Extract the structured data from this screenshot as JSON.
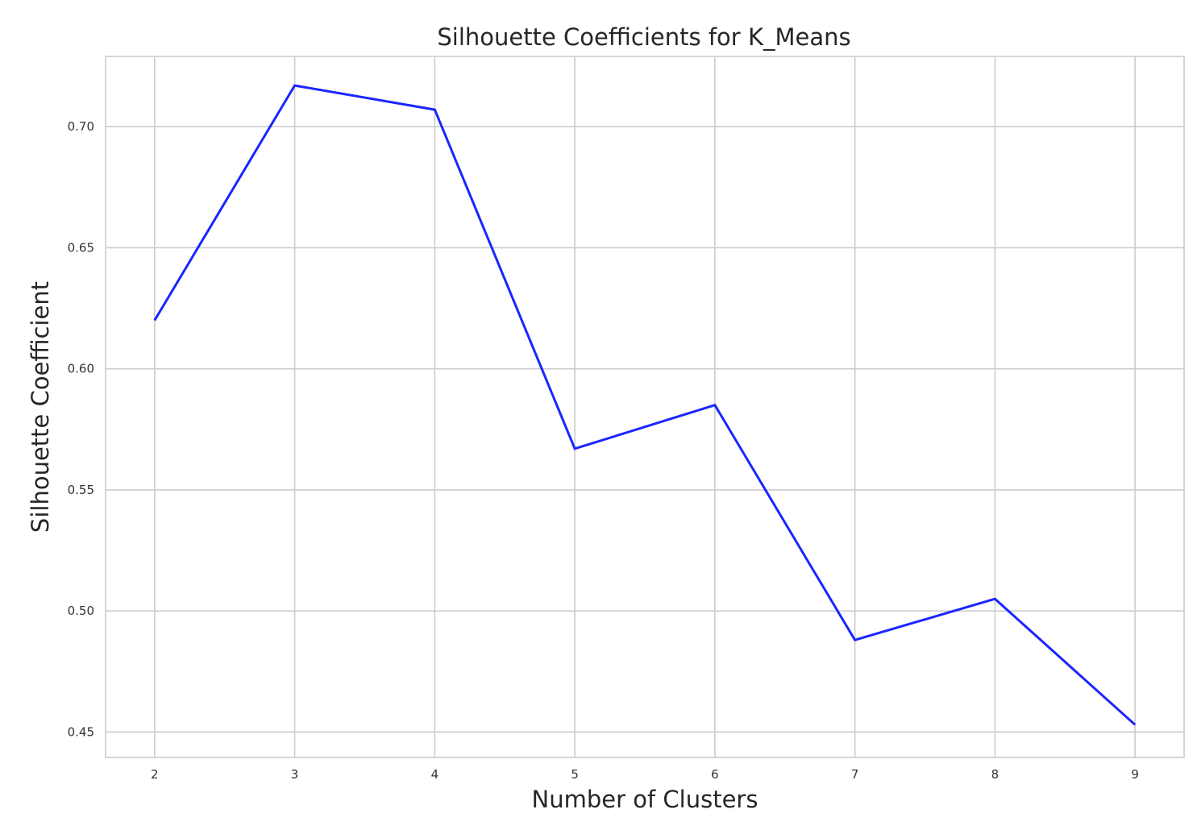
{
  "chart_data": {
    "type": "line",
    "title": "Silhouette Coefficients for K_Means",
    "xlabel": "Number of Clusters",
    "ylabel": "Silhouette Coefficient",
    "x": [
      2,
      3,
      4,
      5,
      6,
      7,
      8,
      9
    ],
    "xticks": [
      "2",
      "3",
      "4",
      "5",
      "6",
      "7",
      "8",
      "9"
    ],
    "yticks": [
      "0.45",
      "0.50",
      "0.55",
      "0.60",
      "0.65",
      "0.70"
    ],
    "ytick_values": [
      0.45,
      0.5,
      0.55,
      0.6,
      0.65,
      0.7
    ],
    "xlim": [
      1.65,
      9.35
    ],
    "ylim": [
      0.4395,
      0.729
    ],
    "grid": true,
    "series": [
      {
        "values": [
          0.62,
          0.717,
          0.707,
          0.567,
          0.585,
          0.488,
          0.505,
          0.453
        ],
        "color": "#1a26ff"
      }
    ]
  }
}
